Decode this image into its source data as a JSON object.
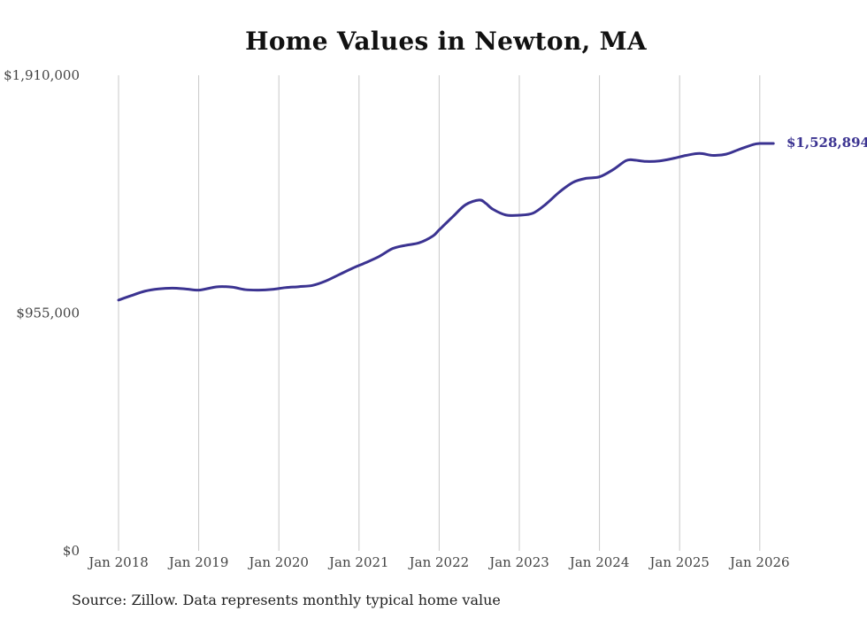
{
  "chart_data": {
    "type": "line",
    "title": "Home Values in Newton, MA",
    "source": "Source: Zillow. Data represents monthly typical home value",
    "xlabel": "",
    "ylabel": "",
    "grid": "vertical",
    "line_color": "#3b3391",
    "grid_color": "#c8c8c8",
    "x_ticks": [
      "Jan 2018",
      "Jan 2019",
      "Jan 2020",
      "Jan 2021",
      "Jan 2022",
      "Jan 2023",
      "Jan 2024",
      "Jan 2025",
      "Jan 2026"
    ],
    "y_ticks": [
      {
        "value": 0,
        "label": "$0"
      },
      {
        "value": 955000,
        "label": "$955,000"
      },
      {
        "value": 1910000,
        "label": "$1,910,000"
      }
    ],
    "ylim": [
      0,
      1910000
    ],
    "xlim": [
      2018.0,
      2026.17
    ],
    "end_label": "$1,528,894",
    "series": [
      {
        "name": "Typical home value",
        "x": [
          2018.0,
          2018.15,
          2018.33,
          2018.5,
          2018.67,
          2018.83,
          2019.0,
          2019.15,
          2019.25,
          2019.42,
          2019.58,
          2019.75,
          2019.92,
          2020.08,
          2020.25,
          2020.42,
          2020.58,
          2020.75,
          2020.92,
          2021.08,
          2021.25,
          2021.42,
          2021.58,
          2021.75,
          2021.92,
          2022.0,
          2022.17,
          2022.33,
          2022.5,
          2022.58,
          2022.67,
          2022.83,
          2023.0,
          2023.17,
          2023.33,
          2023.5,
          2023.67,
          2023.83,
          2024.0,
          2024.17,
          2024.33,
          2024.42,
          2024.58,
          2024.75,
          2024.92,
          2025.08,
          2025.25,
          2025.42,
          2025.58,
          2025.75,
          2025.92,
          2026.0,
          2026.17
        ],
        "y": [
          1007000,
          1024000,
          1043000,
          1052000,
          1055000,
          1052000,
          1047000,
          1056000,
          1061000,
          1059000,
          1049000,
          1047000,
          1050000,
          1057000,
          1061000,
          1066000,
          1083000,
          1109000,
          1135000,
          1157000,
          1182000,
          1214000,
          1227000,
          1237000,
          1264000,
          1289000,
          1342000,
          1390000,
          1409000,
          1396000,
          1372000,
          1349000,
          1348000,
          1356000,
          1392000,
          1441000,
          1480000,
          1496000,
          1502000,
          1531000,
          1567000,
          1570000,
          1564000,
          1566000,
          1576000,
          1588000,
          1596000,
          1588000,
          1593000,
          1613000,
          1632000,
          1636000,
          1528894
        ]
      }
    ]
  }
}
